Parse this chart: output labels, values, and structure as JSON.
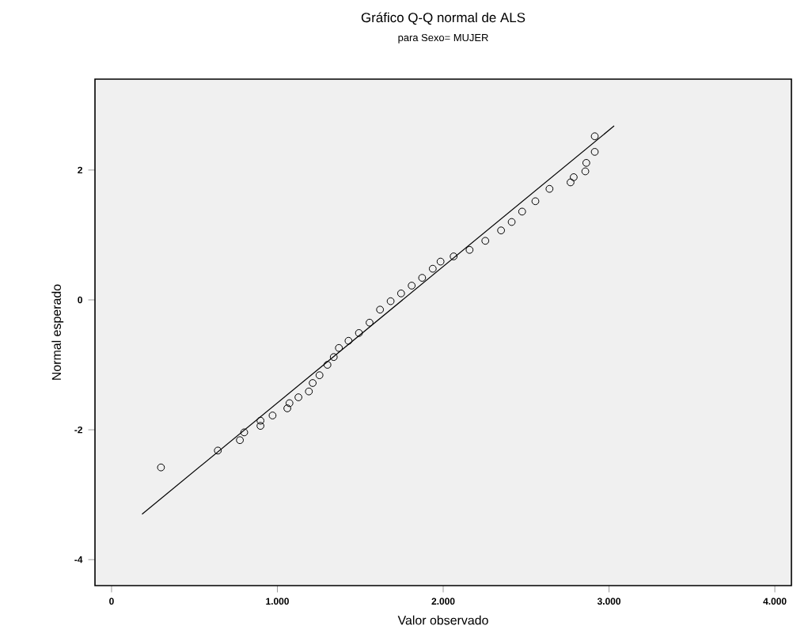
{
  "chart_data": {
    "type": "scatter",
    "title": "Gráfico Q-Q normal de ALS",
    "subtitle": "para Sexo= MUJER",
    "xlabel": "Valor observado",
    "ylabel": "Normal esperado",
    "xlim": [
      -100,
      4100
    ],
    "ylim": [
      -4.4,
      3.4
    ],
    "xticks": [
      0,
      {
        "value": 1000,
        "label": "1.000"
      },
      {
        "value": 2000,
        "label": "2.000"
      },
      {
        "value": 3000,
        "label": "3.000"
      },
      {
        "value": 4000,
        "label": "4.000"
      }
    ],
    "yticks": [
      -4,
      -2,
      0,
      2
    ],
    "series": [
      {
        "color": "#000000",
        "marker": "circle",
        "x": [
          298,
          641,
          774,
          800,
          898,
          898,
          971,
          1060,
          1073,
          1127,
          1190,
          1213,
          1254,
          1302,
          1340,
          1371,
          1429,
          1492,
          1556,
          1619,
          1683,
          1746,
          1810,
          1873,
          1937,
          1984,
          2063,
          2159,
          2254,
          2349,
          2413,
          2476,
          2556,
          2641,
          2768,
          2787,
          2857,
          2863,
          2914,
          2914
        ],
        "values": [
          -2.58,
          -2.32,
          -2.16,
          -2.04,
          -1.94,
          -1.86,
          -1.78,
          -1.67,
          -1.59,
          -1.5,
          -1.41,
          -1.28,
          -1.16,
          -1.0,
          -0.88,
          -0.74,
          -0.63,
          -0.51,
          -0.35,
          -0.15,
          -0.02,
          0.1,
          0.22,
          0.34,
          0.48,
          0.59,
          0.67,
          0.77,
          0.91,
          1.07,
          1.2,
          1.36,
          1.52,
          1.71,
          1.81,
          1.89,
          1.98,
          2.11,
          2.28,
          2.52
        ]
      },
      {
        "type": "line",
        "color": "#000000",
        "marker": "none",
        "line_style": "solid",
        "x": [
          184,
          3031
        ],
        "values": [
          -3.3,
          2.68
        ]
      }
    ]
  }
}
